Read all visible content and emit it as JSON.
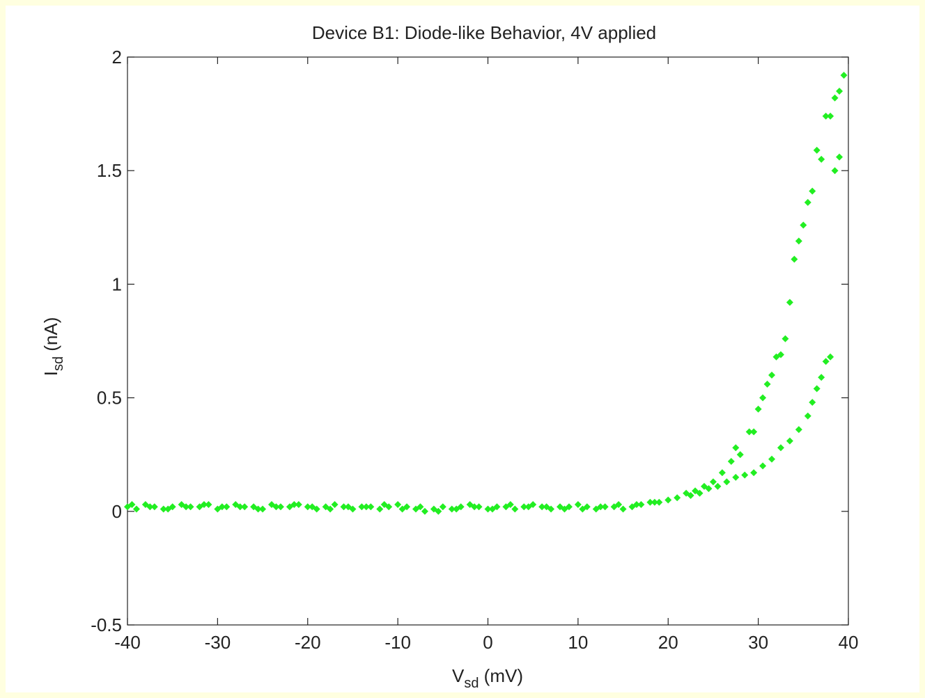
{
  "chart_data": {
    "type": "scatter",
    "title": "Device B1: Diode-like Behavior, 4V applied",
    "xlabel": {
      "main": "V",
      "sub": "sd",
      "rest": " (mV)"
    },
    "ylabel": {
      "main": "I",
      "sub": "sd",
      "rest": " (nA)"
    },
    "color": "#22ee22",
    "xlim": [
      -40,
      40
    ],
    "xticks": [
      -40,
      -30,
      -20,
      -10,
      0,
      10,
      20,
      30,
      40
    ],
    "ylim": [
      -0.5,
      2
    ],
    "yticks": [
      -0.5,
      0,
      0.5,
      1,
      1.5,
      2
    ],
    "x": [
      -40,
      -39,
      -38,
      -37,
      -36,
      -35,
      -34,
      -33,
      -32,
      -31,
      -30,
      -29,
      -28,
      -27,
      -26,
      -25,
      -24,
      -23,
      -22,
      -21,
      -20,
      -19,
      -18,
      -17,
      -16,
      -15,
      -14,
      -13,
      -12,
      -11,
      -10,
      -9,
      -8,
      -7,
      -6,
      -5,
      -4,
      -3,
      -2,
      -1,
      0,
      1,
      2,
      3,
      4,
      5,
      6,
      7,
      8,
      9,
      10,
      11,
      12,
      13,
      14,
      15,
      16,
      17,
      18,
      19,
      20,
      -39.5,
      -37.5,
      -35.5,
      -33.5,
      -31.5,
      -29.5,
      -27.5,
      -25.5,
      -23.5,
      -21.5,
      -19.5,
      -17.5,
      -15.5,
      -13.5,
      -11.5,
      -9.5,
      -7.5,
      -5.5,
      -3.5,
      -1.5,
      0.5,
      2.5,
      4.5,
      6.5,
      8.5,
      10.5,
      12.5,
      14.5,
      16.5,
      18.5,
      21,
      22,
      23,
      24,
      25,
      26,
      27,
      27.5,
      28,
      29,
      29.5,
      30,
      30.5,
      31,
      31.5,
      32,
      32.5,
      33,
      33.5,
      34,
      34.5,
      35,
      35.5,
      36,
      36.5,
      37,
      37.5,
      38,
      38.5,
      39,
      39.5,
      39,
      38.5,
      22.5,
      23.5,
      24.5,
      25.5,
      26.5,
      27.5,
      28.5,
      29.5,
      30.5,
      31.5,
      32.5,
      33.5,
      34.5,
      35.5,
      36,
      36.5,
      37,
      37.5,
      38
    ],
    "values": [
      0.02,
      0.01,
      0.03,
      0.02,
      0.01,
      0.02,
      0.03,
      0.02,
      0.02,
      0.03,
      0.01,
      0.02,
      0.03,
      0.02,
      0.02,
      0.01,
      0.03,
      0.02,
      0.02,
      0.03,
      0.02,
      0.01,
      0.02,
      0.03,
      0.02,
      0.01,
      0.02,
      0.02,
      0.01,
      0.02,
      0.03,
      0.02,
      0.01,
      0.0,
      0.01,
      0.02,
      0.01,
      0.02,
      0.03,
      0.02,
      0.01,
      0.02,
      0.02,
      0.01,
      0.02,
      0.03,
      0.02,
      0.01,
      0.02,
      0.02,
      0.03,
      0.02,
      0.01,
      0.02,
      0.02,
      0.01,
      0.02,
      0.03,
      0.04,
      0.04,
      0.05,
      0.03,
      0.02,
      0.01,
      0.02,
      0.03,
      0.02,
      0.02,
      0.01,
      0.02,
      0.03,
      0.02,
      0.01,
      0.02,
      0.02,
      0.03,
      0.01,
      0.02,
      0.0,
      0.01,
      0.02,
      0.01,
      0.03,
      0.02,
      0.02,
      0.01,
      0.01,
      0.02,
      0.03,
      0.03,
      0.04,
      0.06,
      0.08,
      0.09,
      0.11,
      0.13,
      0.17,
      0.22,
      0.28,
      0.25,
      0.35,
      0.35,
      0.45,
      0.5,
      0.56,
      0.6,
      0.68,
      0.69,
      0.76,
      0.92,
      1.11,
      1.19,
      1.26,
      1.36,
      1.41,
      1.59,
      1.55,
      1.74,
      1.74,
      1.82,
      1.85,
      1.92,
      1.56,
      1.5,
      0.07,
      0.08,
      0.1,
      0.11,
      0.13,
      0.15,
      0.16,
      0.17,
      0.2,
      0.23,
      0.28,
      0.31,
      0.36,
      0.42,
      0.48,
      0.54,
      0.59,
      0.66,
      0.68
    ]
  }
}
